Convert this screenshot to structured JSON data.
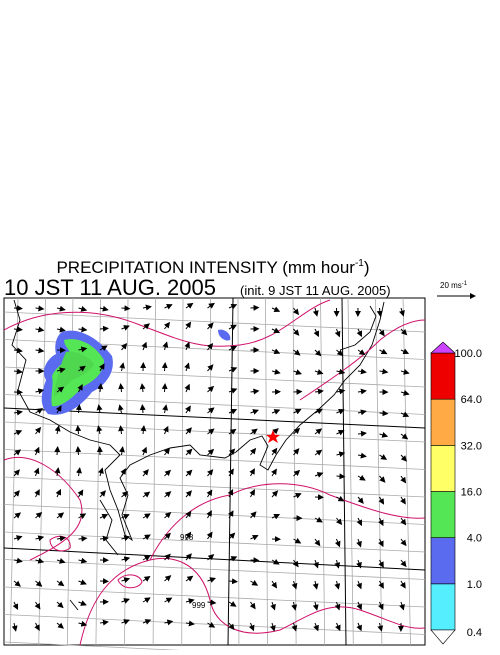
{
  "title": {
    "text": "PRECIPITATION INTENSITY (mm hour",
    "superscript": "-1",
    "close": ")"
  },
  "valid_time": "10 JST 11 AUG. 2005",
  "init_time": "(init. 9 JST 11 AUG. 2005)",
  "wind_scale": {
    "text": "20 ms",
    "superscript": "-1"
  },
  "contour_labels": [
    "998",
    "999"
  ],
  "colorbar": {
    "levels": [
      {
        "value": 0.4,
        "label": "0.4"
      },
      {
        "value": 1,
        "label": "1.0"
      },
      {
        "value": 4,
        "label": "4.0"
      },
      {
        "value": 16,
        "label": "16.0"
      },
      {
        "value": 32,
        "label": "32.0"
      },
      {
        "value": 64,
        "label": "64.0"
      },
      {
        "value": 100,
        "label": "100.0"
      }
    ],
    "colors": [
      "#55eeff",
      "#5a6bf0",
      "#55e655",
      "#ffff66",
      "#ffaa44",
      "#ee0000"
    ],
    "under_color": "#ffffff",
    "over_color": "#cc44ff"
  }
}
